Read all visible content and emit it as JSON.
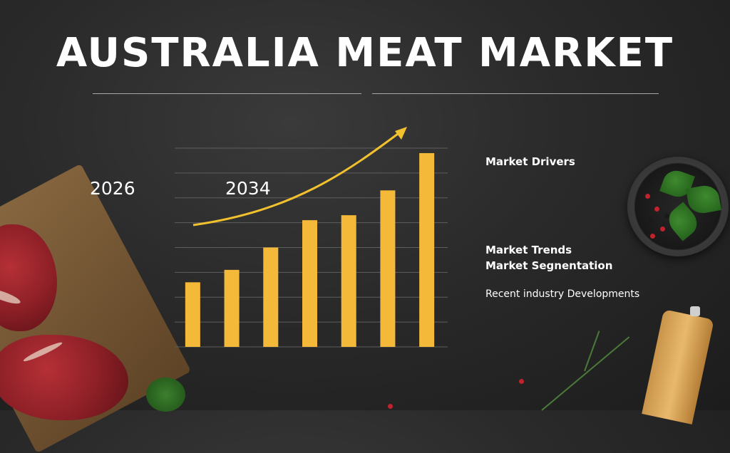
{
  "title": "AUSTRALIA MEAT MARKET",
  "labels": {
    "year_start": "2026",
    "year_end": "2034",
    "market_drivers": "Market  Drivers",
    "market_trends": "Market  Trends",
    "market_segmentation": "Market  Segnentation",
    "recent_developments": "Recent    industry    Developments"
  },
  "colors": {
    "bar": "#f5b93a",
    "arrow": "#f2c12e",
    "grid": "#5e5e5e",
    "tick_text": "#bdbdbd"
  },
  "chart_data": {
    "type": "bar",
    "categories": [
      "",
      "",
      "",
      "",
      "",
      "",
      ""
    ],
    "values": [
      26,
      31,
      40,
      51,
      53,
      63,
      78
    ],
    "ylim": [
      0,
      80
    ],
    "yticks": [
      "",
      "",
      "",
      "",
      "",
      "",
      "",
      "",
      ""
    ],
    "grid": true,
    "trend_arrow": true
  }
}
